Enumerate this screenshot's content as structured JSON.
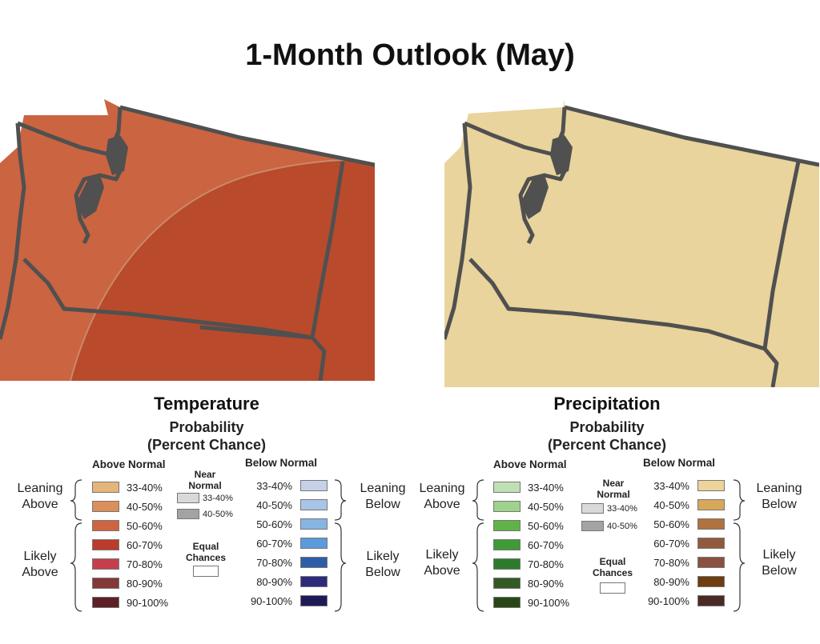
{
  "title": "1-Month Outlook (May)",
  "temperature": {
    "title": "Temperature",
    "probability_label": "Probability",
    "percent_label": "(Percent Chance)",
    "above_normal_header": "Above Normal",
    "below_normal_header": "Below Normal",
    "near_normal_header": "Near Normal",
    "equal_chances_header": "Equal Chances",
    "leaning_above": "Leaning Above",
    "likely_above": "Likely Above",
    "leaning_below": "Leaning Below",
    "likely_below": "Likely Below",
    "above_rows": [
      {
        "label": "33-40%",
        "color": "#e5b57a"
      },
      {
        "label": "40-50%",
        "color": "#db8f5a"
      },
      {
        "label": "50-60%",
        "color": "#cf6540"
      },
      {
        "label": "60-70%",
        "color": "#bb3b2c"
      },
      {
        "label": "70-80%",
        "color": "#c63e4c"
      },
      {
        "label": "80-90%",
        "color": "#843838"
      },
      {
        "label": "90-100%",
        "color": "#5c2026"
      }
    ],
    "below_rows": [
      {
        "label": "33-40%",
        "color": "#c6d0e8"
      },
      {
        "label": "40-50%",
        "color": "#a8c4e6"
      },
      {
        "label": "50-60%",
        "color": "#86b5e4"
      },
      {
        "label": "60-70%",
        "color": "#5a9bdc"
      },
      {
        "label": "70-80%",
        "color": "#2e5ea8"
      },
      {
        "label": "80-90%",
        "color": "#2e2a7c"
      },
      {
        "label": "90-100%",
        "color": "#1e1a56"
      }
    ],
    "near_rows": [
      {
        "label": "33-40%",
        "color": "#d9d9d9"
      },
      {
        "label": "40-50%",
        "color": "#a3a3a3"
      }
    ]
  },
  "precipitation": {
    "title": "Precipitation",
    "probability_label": "Probability",
    "percent_label": "(Percent Chance)",
    "above_normal_header": "Above Normal",
    "below_normal_header": "Below Normal",
    "near_normal_header": "Near Normal",
    "equal_chances_header": "Equal Chances",
    "leaning_above": "Leaning Above",
    "likely_above": "Likely Above",
    "leaning_below": "Leaning Below",
    "likely_below": "Likely Below",
    "above_rows": [
      {
        "label": "33-40%",
        "color": "#bfe0b5"
      },
      {
        "label": "40-50%",
        "color": "#9fd28c"
      },
      {
        "label": "50-60%",
        "color": "#5fb348"
      },
      {
        "label": "60-70%",
        "color": "#3f9a37"
      },
      {
        "label": "70-80%",
        "color": "#2e7a2c"
      },
      {
        "label": "80-90%",
        "color": "#335a22"
      },
      {
        "label": "90-100%",
        "color": "#294716"
      }
    ],
    "below_rows": [
      {
        "label": "33-40%",
        "color": "#ecd49a"
      },
      {
        "label": "40-50%",
        "color": "#d6a85c"
      },
      {
        "label": "50-60%",
        "color": "#b0723e"
      },
      {
        "label": "60-70%",
        "color": "#915a3c"
      },
      {
        "label": "70-80%",
        "color": "#8b5040"
      },
      {
        "label": "80-90%",
        "color": "#6e3d10"
      },
      {
        "label": "90-100%",
        "color": "#4a2a25"
      }
    ],
    "near_rows": [
      {
        "label": "33-40%",
        "color": "#d9d9d9"
      },
      {
        "label": "40-50%",
        "color": "#a3a3a3"
      }
    ]
  },
  "maps": {
    "temperature_colors": {
      "leaning": "#cb6440",
      "likely": "#b94a2c"
    },
    "precipitation_colors": {
      "leaning": "#e8d49c"
    },
    "border_color": "#505050"
  }
}
